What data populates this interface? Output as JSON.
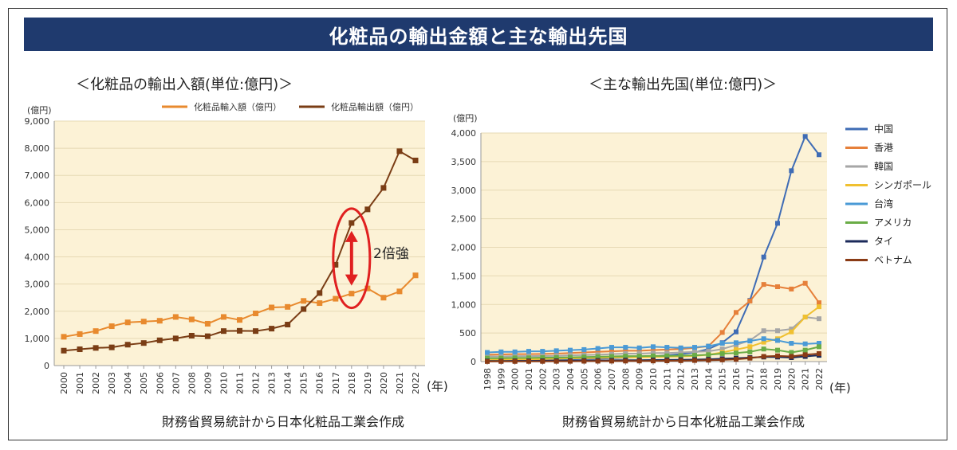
{
  "banner_title": "化粧品の輸出金額と主な輸出先国",
  "colors": {
    "banner_bg": "#1f3a6e",
    "plot_bg": "#fcf2d6",
    "import": "#e88a2e",
    "export": "#7a3d15",
    "annotation": "#e02020"
  },
  "chart_data": [
    {
      "type": "line",
      "title": "＜化粧品の輸出入額(単位:億円)＞",
      "ylabel": "(億円)",
      "xunit": "(年)",
      "ylim": [
        0,
        9000
      ],
      "yticks": [
        "0",
        "1,000",
        "2,000",
        "3,000",
        "4,000",
        "5,000",
        "6,000",
        "7,000",
        "8,000",
        "9,000"
      ],
      "categories": [
        "2000",
        "2001",
        "2002",
        "2003",
        "2004",
        "2005",
        "2006",
        "2007",
        "2008",
        "2009",
        "2010",
        "2011",
        "2012",
        "2013",
        "2014",
        "2015",
        "2016",
        "2017",
        "2018",
        "2019",
        "2020",
        "2021",
        "2022"
      ],
      "series": [
        {
          "name": "化粧品輸入額（億円）",
          "color": "#e88a2e",
          "values": [
            1060,
            1160,
            1270,
            1450,
            1590,
            1620,
            1650,
            1790,
            1700,
            1540,
            1790,
            1680,
            1920,
            2140,
            2160,
            2380,
            2300,
            2460,
            2650,
            2840,
            2500,
            2730,
            3320
          ]
        },
        {
          "name": "化粧品輸出額（億円）",
          "color": "#7a3d15",
          "values": [
            550,
            600,
            650,
            670,
            770,
            830,
            930,
            1000,
            1100,
            1080,
            1270,
            1280,
            1270,
            1360,
            1510,
            2080,
            2670,
            3710,
            5250,
            5750,
            6540,
            7890,
            7550
          ]
        }
      ],
      "legend_position": "top",
      "annotation": "2倍強",
      "source": "財務省貿易統計から日本化粧品工業会作成"
    },
    {
      "type": "line",
      "title": "＜主な輸出先国(単位:億円)＞",
      "ylabel": "(億円)",
      "xunit": "(年)",
      "ylim": [
        0,
        4000
      ],
      "yticks": [
        "0",
        "500",
        "1,000",
        "1,500",
        "2,000",
        "2,500",
        "3,000",
        "3,500",
        "4,000"
      ],
      "categories": [
        "1998",
        "1999",
        "2000",
        "2001",
        "2002",
        "2003",
        "2004",
        "2005",
        "2006",
        "2007",
        "2008",
        "2009",
        "2010",
        "2011",
        "2012",
        "2013",
        "2014",
        "2015",
        "2016",
        "2017",
        "2018",
        "2019",
        "2020",
        "2021",
        "2022"
      ],
      "series": [
        {
          "name": "中国",
          "color": "#3f6cb5",
          "values": [
            10,
            15,
            20,
            25,
            30,
            35,
            40,
            45,
            50,
            60,
            70,
            80,
            90,
            110,
            130,
            160,
            220,
            330,
            520,
            1070,
            1830,
            2420,
            3340,
            3940,
            3620
          ]
        },
        {
          "name": "香港",
          "color": "#e6803a",
          "values": [
            120,
            125,
            130,
            130,
            135,
            140,
            150,
            160,
            170,
            180,
            190,
            190,
            200,
            210,
            220,
            240,
            270,
            510,
            860,
            1060,
            1350,
            1310,
            1270,
            1370,
            1030
          ]
        },
        {
          "name": "韓国",
          "color": "#a6a6a6",
          "values": [
            90,
            90,
            95,
            95,
            100,
            100,
            110,
            115,
            120,
            130,
            140,
            140,
            150,
            150,
            160,
            170,
            180,
            220,
            290,
            370,
            540,
            540,
            570,
            780,
            750
          ]
        },
        {
          "name": "シンガポール",
          "color": "#f0c030",
          "values": [
            30,
            35,
            40,
            40,
            45,
            50,
            55,
            60,
            65,
            70,
            75,
            75,
            80,
            85,
            90,
            100,
            120,
            160,
            210,
            260,
            340,
            400,
            520,
            780,
            960
          ]
        },
        {
          "name": "台湾",
          "color": "#4a9ad6",
          "values": [
            160,
            170,
            170,
            180,
            180,
            190,
            200,
            210,
            230,
            250,
            250,
            240,
            260,
            250,
            240,
            250,
            270,
            320,
            330,
            360,
            400,
            370,
            320,
            310,
            320
          ]
        },
        {
          "name": "アメリカ",
          "color": "#6aac46",
          "values": [
            60,
            60,
            65,
            65,
            70,
            70,
            75,
            80,
            85,
            90,
            95,
            95,
            100,
            100,
            105,
            110,
            120,
            140,
            150,
            170,
            220,
            200,
            160,
            200,
            260
          ]
        },
        {
          "name": "タイ",
          "color": "#1b2a5a",
          "values": [
            10,
            10,
            12,
            12,
            14,
            15,
            16,
            18,
            20,
            22,
            25,
            25,
            28,
            30,
            32,
            35,
            40,
            50,
            60,
            70,
            80,
            80,
            70,
            90,
            110
          ]
        },
        {
          "name": "ベトナム",
          "color": "#8a3b15",
          "values": [
            2,
            3,
            3,
            4,
            4,
            5,
            6,
            7,
            8,
            9,
            10,
            11,
            12,
            14,
            16,
            20,
            25,
            30,
            40,
            60,
            90,
            100,
            90,
            120,
            140
          ]
        }
      ],
      "legend_position": "right",
      "source": "財務省貿易統計から日本化粧品工業会作成"
    }
  ]
}
